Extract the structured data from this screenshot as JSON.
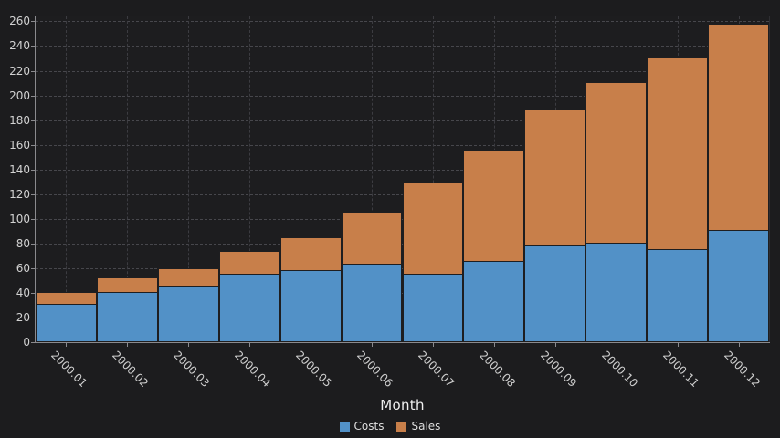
{
  "window": {
    "background": "#1c1c1e",
    "plot_background": "#1d1d1f",
    "grid_color": "#47474c",
    "axis_color": "#8a8a8e",
    "text_color": "#d6d6d6"
  },
  "chart_data": {
    "type": "bar",
    "stacked": true,
    "title": "",
    "xlabel": "Month",
    "ylabel": "",
    "categories": [
      "2000.01",
      "2000.02",
      "2000.03",
      "2000.04",
      "2000.05",
      "2000.06",
      "2000.07",
      "2000.08",
      "2000.09",
      "2000.10",
      "2000.11",
      "2000.12"
    ],
    "series": [
      {
        "name": "Costs",
        "color": "#5291c7",
        "values": [
          30,
          40,
          45,
          55,
          58,
          63,
          55,
          65,
          78,
          80,
          75,
          90
        ]
      },
      {
        "name": "Sales",
        "color": "#c87f4a",
        "values": [
          10,
          12,
          14,
          18,
          26,
          42,
          74,
          90,
          110,
          130,
          155,
          167
        ]
      }
    ],
    "totals": [
      40,
      52,
      59,
      73,
      84,
      105,
      129,
      155,
      188,
      210,
      230,
      257
    ],
    "ylim": [
      0,
      264
    ],
    "ytick_step": 20,
    "ytick_max": 260,
    "grid": true,
    "legend_position": "bottom"
  }
}
